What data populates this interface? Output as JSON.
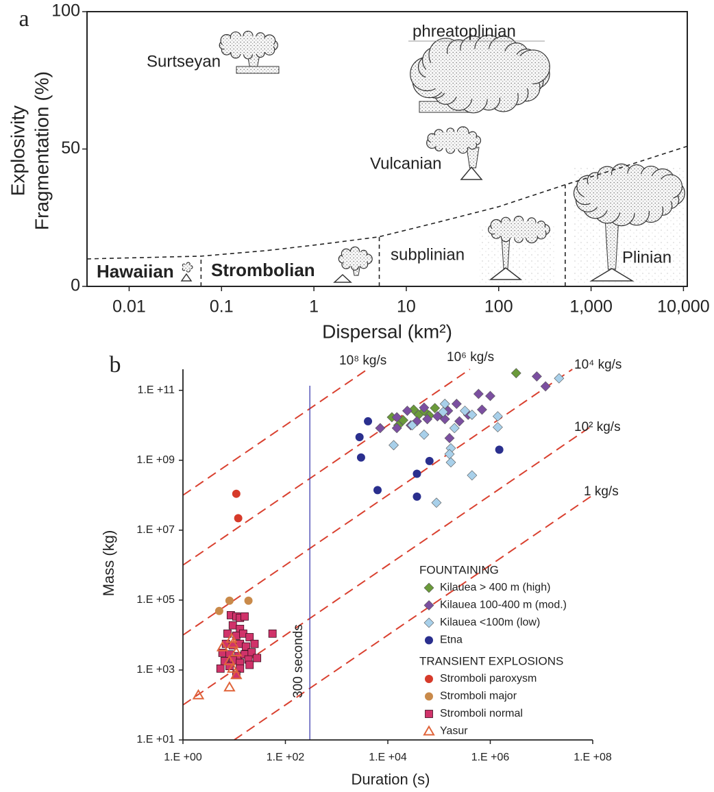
{
  "chart_data": [
    {
      "type": "diagram",
      "panel_label": "a",
      "x_label": "Dispersal (km²)",
      "y_label": [
        "Explosivity",
        "Fragmentation (%)"
      ],
      "xscale": "log",
      "xlim": [
        0.0035,
        11000
      ],
      "xticks": [
        0.01,
        0.1,
        1,
        10,
        100,
        {
          "value": 1000,
          "label": "1,000"
        },
        {
          "value": 10000,
          "label": "10,000"
        }
      ],
      "ylim": [
        0,
        100
      ],
      "yticks": [
        0,
        50,
        100
      ],
      "boundary": {
        "x": [
          0.0035,
          0.06,
          0.3,
          1,
          5,
          20,
          100,
          525,
          2000,
          11000
        ],
        "y": [
          10,
          11,
          13,
          15,
          18,
          23,
          29,
          37,
          43,
          51
        ]
      },
      "dividers": [
        0.06,
        5.1,
        525
      ],
      "regimes": [
        {
          "label": "Hawaiian",
          "color": "#d63a2a",
          "bold": true
        },
        {
          "label": "Strombolian",
          "color": "#d63a2a",
          "bold": true
        },
        {
          "label": "subplinian",
          "color": "#222222",
          "bold": false
        },
        {
          "label": "Plinian",
          "color": "#222222",
          "bold": false
        },
        {
          "label": "Vulcanian",
          "color": "#222222",
          "bold": false
        },
        {
          "label": "Surtseyan",
          "color": "#222222",
          "bold": false
        },
        {
          "label": "phreatoplinian",
          "color": "#222222",
          "bold": false
        }
      ]
    },
    {
      "type": "scatter",
      "panel_label": "b",
      "x_label": "Duration (s)",
      "y_label": "Mass (kg)",
      "xscale": "log",
      "yscale": "log",
      "xlim": [
        1,
        100000000
      ],
      "ylim": [
        10,
        400000000000
      ],
      "xticks": [
        {
          "value": 1,
          "label": "1.E +00"
        },
        {
          "value": 100,
          "label": "1.E +02"
        },
        {
          "value": 10000,
          "label": "1.E +04"
        },
        {
          "value": 1000000,
          "label": "1.E +06"
        },
        {
          "value": 100000000,
          "label": "1.E +08"
        }
      ],
      "yticks": [
        {
          "value": 10,
          "label": "1.E +01"
        },
        {
          "value": 1000,
          "label": "1.E +03"
        },
        {
          "value": 100000,
          "label": "1.E +05"
        },
        {
          "value": 10000000,
          "label": "1.E +07"
        },
        {
          "value": 1000000000,
          "label": "1.E +09"
        },
        {
          "value": 100000000000,
          "label": "1.E +11"
        }
      ],
      "rate_lines": {
        "color": "#d9402f",
        "values": [
          100000000,
          1000000,
          10000,
          100,
          1
        ],
        "labels": [
          "10⁸ kg/s",
          "10⁶ kg/s",
          "10⁴ kg/s",
          "10² kg/s",
          "1 kg/s"
        ]
      },
      "vline": {
        "x": 300,
        "label": "300 seconds",
        "color": "#3b3bb0"
      },
      "legend_groups": [
        {
          "title": "FOUNTAINING",
          "series": [
            0,
            1,
            2,
            3
          ]
        },
        {
          "title": "TRANSIENT EXPLOSIONS",
          "series": [
            4,
            5,
            6,
            7
          ]
        }
      ],
      "series": [
        {
          "name": "Kilauea > 400 m (high)",
          "color": "#6a9a3a",
          "marker": "diamond",
          "x": [
            12000,
            16000,
            20000,
            32000,
            40000,
            51000,
            65000,
            83000,
            110000,
            3200000
          ],
          "values": [
            17000000000,
            10000000000,
            14000000000,
            28000000000,
            20000000000,
            26000000000,
            19000000000,
            31000000000,
            21000000000,
            310000000000
          ]
        },
        {
          "name": "Kilauea 100-400 m (mod.)",
          "color": "#7b4fa0",
          "marker": "diamond",
          "x": [
            7100,
            15000,
            24000,
            28000,
            37000,
            59000,
            93000,
            150000,
            220000,
            250000,
            370000,
            590000,
            690000,
            1000000,
            160000,
            8100000,
            12000000,
            15000,
            51000,
            130000
          ],
          "values": [
            8300000000,
            17000000000,
            26000000000,
            10000000000,
            13000000000,
            15000000000,
            18000000000,
            26000000000,
            41000000000,
            13000000000,
            20000000000,
            79000000000,
            28000000000,
            69000000000,
            4300000000,
            250000000000,
            130000000000,
            8300000000,
            32000000000,
            15000000000
          ]
        },
        {
          "name": "Kilauea <100m (low)",
          "color": "#a8d0ea",
          "marker": "diamond",
          "x": [
            13000,
            51000,
            130000,
            170000,
            200000,
            320000,
            440000,
            1400000,
            1400000,
            160000,
            170000,
            440000,
            89000,
            22000000,
            30000,
            120000
          ],
          "values": [
            2700000000,
            5400000000,
            41000000000,
            2200000000,
            8300000000,
            26000000000,
            20000000000,
            18000000000,
            8800000000,
            1500000000,
            870000000,
            370000000,
            61000000,
            220000000000,
            10000000000,
            24000000000
          ]
        },
        {
          "name": "Etna",
          "color": "#2a2f8e",
          "marker": "circle",
          "x": [
            4100,
            2800,
            3000,
            6300,
            37000,
            37000,
            65000,
            1500000
          ],
          "values": [
            13000000000,
            4600000000,
            1200000000,
            140000000,
            410000000,
            91000000,
            950000000,
            2000000000
          ]
        },
        {
          "name": "Stromboli paroxysm",
          "color": "#d63a2a",
          "marker": "circle",
          "x": [
            11,
            12
          ],
          "values": [
            110000000,
            22000000
          ]
        },
        {
          "name": "Stromboli major",
          "color": "#c98a4a",
          "marker": "circle",
          "x": [
            5.1,
            8.1,
            19
          ],
          "values": [
            49000,
            96000,
            96000
          ]
        },
        {
          "name": "Stromboli normal",
          "color": "#d0336a",
          "marker": "square",
          "x": [
            8.6,
            11,
            13,
            16,
            9.4,
            13,
            7.4,
            11,
            15,
            56,
            20,
            6.9,
            9.4,
            13,
            17,
            25,
            5.9,
            8.1,
            12,
            16,
            22,
            6.5,
            9.4,
            13,
            19,
            28,
            5.4,
            8.1,
            13,
            11,
            20
          ],
          "values": [
            37000,
            34000,
            31000,
            34000,
            19000,
            15000,
            11000,
            9600,
            11000,
            11000,
            8700,
            5600,
            5100,
            5600,
            4700,
            5600,
            3100,
            2800,
            2500,
            2800,
            3200,
            1800,
            1900,
            1600,
            2000,
            2200,
            1100,
            1300,
            1100,
            720,
            1400
          ]
        },
        {
          "name": "Yasur",
          "color": "#e0643a",
          "marker": "triangle",
          "x": [
            2,
            8.1,
            9.4,
            11,
            8.9,
            5.9,
            9.4,
            11,
            8.1
          ],
          "values": [
            190,
            320,
            1100,
            3200,
            7900,
            4500,
            5600,
            720,
            1800
          ]
        }
      ]
    }
  ]
}
